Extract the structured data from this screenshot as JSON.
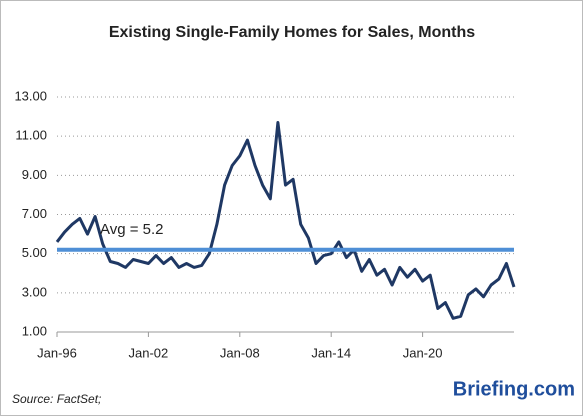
{
  "chart_data": {
    "type": "line",
    "title": "Existing Single-Family Homes for Sales, Months",
    "x": [
      "Jan-96",
      "Jul-96",
      "Jan-97",
      "Jul-97",
      "Jan-98",
      "Jul-98",
      "Jan-99",
      "Jul-99",
      "Jan-00",
      "Jul-00",
      "Jan-01",
      "Jul-01",
      "Jan-02",
      "Jul-02",
      "Jan-03",
      "Jul-03",
      "Jan-04",
      "Jul-04",
      "Jan-05",
      "Jul-05",
      "Jan-06",
      "Jul-06",
      "Jan-07",
      "Jul-07",
      "Jan-08",
      "Jul-08",
      "Jan-09",
      "Jul-09",
      "Jan-10",
      "Jul-10",
      "Jan-11",
      "Jul-11",
      "Jan-12",
      "Jul-12",
      "Jan-13",
      "Jul-13",
      "Jan-14",
      "Jul-14",
      "Jan-15",
      "Jul-15",
      "Jan-16",
      "Jul-16",
      "Jan-17",
      "Jul-17",
      "Jan-18",
      "Jul-18",
      "Jan-19",
      "Jul-19",
      "Jan-20",
      "Jul-20",
      "Jan-21",
      "Jul-21",
      "Jan-22",
      "Jul-22",
      "Jan-23",
      "Jul-23",
      "Jan-24",
      "Jul-24",
      "Jan-25",
      "Jul-25",
      "Jan-26"
    ],
    "series": [
      {
        "color": "#1f3864",
        "values": [
          5.6,
          6.1,
          6.5,
          6.8,
          6.0,
          6.9,
          5.5,
          4.6,
          4.5,
          4.3,
          4.7,
          4.6,
          4.5,
          4.9,
          4.5,
          4.8,
          4.3,
          4.5,
          4.3,
          4.4,
          5.0,
          6.5,
          8.5,
          9.5,
          10.0,
          10.8,
          9.5,
          8.5,
          7.8,
          11.7,
          8.5,
          8.8,
          6.5,
          5.8,
          4.5,
          4.9,
          5.0,
          5.6,
          4.8,
          5.2,
          4.1,
          4.7,
          3.9,
          4.2,
          3.4,
          4.3,
          3.8,
          4.2,
          3.6,
          3.9,
          2.2,
          2.5,
          1.7,
          1.8,
          2.9,
          3.2,
          2.8,
          3.4,
          3.7,
          4.5,
          3.3
        ]
      }
    ],
    "average": {
      "value": 5.2,
      "label": "Avg = 5.2",
      "color": "#4f8fd6"
    },
    "xlim": [
      "Jan-96",
      "Jan-26"
    ],
    "xticks": [
      "Jan-96",
      "Jan-02",
      "Jan-08",
      "Jan-14",
      "Jan-20"
    ],
    "ylim": [
      1,
      13
    ],
    "yticks": [
      {
        "value": 1,
        "label": "1.00"
      },
      {
        "value": 3,
        "label": "3.00"
      },
      {
        "value": 5,
        "label": "5.00"
      },
      {
        "value": 7,
        "label": "7.00"
      },
      {
        "value": 9,
        "label": "9.00"
      },
      {
        "value": 11,
        "label": "11.00"
      },
      {
        "value": 13,
        "label": "13.00"
      }
    ],
    "grid": true,
    "source": "Source: FactSet;",
    "brand": "Briefing.com"
  }
}
